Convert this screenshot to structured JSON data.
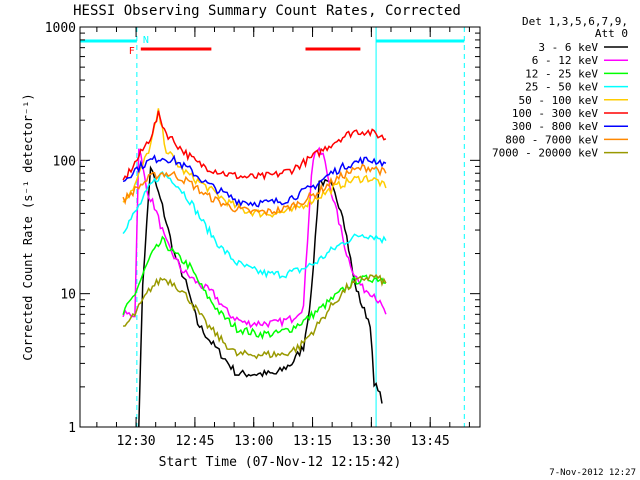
{
  "chart_data": {
    "type": "line",
    "title": "HESSI Observing Summary Count Rates, Corrected",
    "xlabel": "Start Time (07-Nov-12 12:15:42)",
    "ylabel": "Corrected Count Rate (s⁻¹ detector⁻¹)",
    "y_scale": "log",
    "ylim": [
      1,
      1000
    ],
    "xlim_minutes": [
      0,
      102
    ],
    "x_ticks": [
      {
        "label": "12:30",
        "t": 14.3
      },
      {
        "label": "12:45",
        "t": 29.3
      },
      {
        "label": "13:00",
        "t": 44.3
      },
      {
        "label": "13:15",
        "t": 59.3
      },
      {
        "label": "13:30",
        "t": 74.3
      },
      {
        "label": "13:45",
        "t": 89.3
      }
    ],
    "y_ticks": [
      {
        "label": "1",
        "v": 1
      },
      {
        "label": "10",
        "v": 10
      },
      {
        "label": "100",
        "v": 100
      },
      {
        "label": "1000",
        "v": 1000
      }
    ],
    "legend_header": [
      "Det 1,3,5,6,7,9,",
      "Att 0"
    ],
    "series": [
      {
        "name": "3 - 6 keV",
        "color": "#000000",
        "points": [
          [
            15,
            1
          ],
          [
            16,
            12
          ],
          [
            18,
            90
          ],
          [
            21,
            45
          ],
          [
            24,
            20
          ],
          [
            27,
            12
          ],
          [
            30,
            6
          ],
          [
            33,
            4.5
          ],
          [
            36,
            3.5
          ],
          [
            40,
            2.5
          ],
          [
            45,
            2.5
          ],
          [
            50,
            2.5
          ],
          [
            54,
            3
          ],
          [
            57,
            4
          ],
          [
            59,
            10
          ],
          [
            61,
            70
          ],
          [
            64,
            65
          ],
          [
            67,
            40
          ],
          [
            70,
            12
          ],
          [
            72,
            8
          ],
          [
            74,
            6
          ],
          [
            75,
            2
          ],
          [
            76,
            2
          ],
          [
            77,
            1.5
          ]
        ]
      },
      {
        "name": "6 - 12 keV",
        "color": "#ff00ff",
        "points": [
          [
            11,
            7
          ],
          [
            14,
            7
          ],
          [
            15,
            130
          ],
          [
            17,
            60
          ],
          [
            19,
            45
          ],
          [
            22,
            24
          ],
          [
            26,
            15
          ],
          [
            30,
            12
          ],
          [
            34,
            10
          ],
          [
            38,
            7
          ],
          [
            42,
            6
          ],
          [
            46,
            6
          ],
          [
            50,
            6
          ],
          [
            54,
            6.5
          ],
          [
            57,
            8
          ],
          [
            59,
            80
          ],
          [
            60,
            120
          ],
          [
            62,
            110
          ],
          [
            64,
            60
          ],
          [
            66,
            35
          ],
          [
            68,
            20
          ],
          [
            70,
            14
          ],
          [
            72,
            11
          ],
          [
            75,
            10
          ],
          [
            78,
            7
          ]
        ]
      },
      {
        "name": "12 - 25 keV",
        "color": "#00ff00",
        "points": [
          [
            11,
            7
          ],
          [
            14,
            10
          ],
          [
            18,
            19
          ],
          [
            21,
            25
          ],
          [
            24,
            20
          ],
          [
            28,
            16
          ],
          [
            32,
            10
          ],
          [
            36,
            7
          ],
          [
            40,
            5.5
          ],
          [
            45,
            5
          ],
          [
            50,
            5
          ],
          [
            54,
            5.5
          ],
          [
            58,
            6.5
          ],
          [
            62,
            8
          ],
          [
            66,
            10
          ],
          [
            70,
            12.5
          ],
          [
            74,
            13
          ],
          [
            77,
            13
          ],
          [
            78,
            12
          ]
        ]
      },
      {
        "name": "25 - 50 keV",
        "color": "#00ffff",
        "points": [
          [
            11,
            30
          ],
          [
            14,
            40
          ],
          [
            18,
            65
          ],
          [
            21,
            80
          ],
          [
            24,
            70
          ],
          [
            28,
            50
          ],
          [
            32,
            32
          ],
          [
            36,
            22
          ],
          [
            40,
            17
          ],
          [
            44,
            15
          ],
          [
            48,
            14
          ],
          [
            52,
            14
          ],
          [
            56,
            15
          ],
          [
            60,
            17
          ],
          [
            64,
            21
          ],
          [
            68,
            25
          ],
          [
            72,
            28
          ],
          [
            75,
            27
          ],
          [
            78,
            25
          ]
        ]
      },
      {
        "name": "50 - 100 keV",
        "color": "#ffcc00",
        "points": [
          [
            11,
            50
          ],
          [
            14,
            65
          ],
          [
            18,
            130
          ],
          [
            20,
            230
          ],
          [
            22,
            120
          ],
          [
            26,
            85
          ],
          [
            30,
            70
          ],
          [
            34,
            58
          ],
          [
            38,
            48
          ],
          [
            42,
            42
          ],
          [
            46,
            40
          ],
          [
            50,
            40
          ],
          [
            54,
            42
          ],
          [
            58,
            48
          ],
          [
            62,
            56
          ],
          [
            66,
            65
          ],
          [
            70,
            72
          ],
          [
            73,
            74
          ],
          [
            76,
            70
          ],
          [
            78,
            62
          ]
        ]
      },
      {
        "name": "100 - 300 keV",
        "color": "#ff0000",
        "points": [
          [
            11,
            70
          ],
          [
            14,
            95
          ],
          [
            18,
            150
          ],
          [
            20,
            220
          ],
          [
            22,
            160
          ],
          [
            26,
            120
          ],
          [
            30,
            95
          ],
          [
            34,
            85
          ],
          [
            38,
            78
          ],
          [
            42,
            75
          ],
          [
            46,
            75
          ],
          [
            50,
            78
          ],
          [
            54,
            85
          ],
          [
            58,
            100
          ],
          [
            62,
            120
          ],
          [
            66,
            145
          ],
          [
            70,
            165
          ],
          [
            73,
            165
          ],
          [
            76,
            155
          ],
          [
            78,
            145
          ]
        ]
      },
      {
        "name": "300 - 800 keV",
        "color": "#0000ff",
        "points": [
          [
            11,
            70
          ],
          [
            14,
            85
          ],
          [
            18,
            100
          ],
          [
            21,
            105
          ],
          [
            24,
            100
          ],
          [
            28,
            85
          ],
          [
            32,
            68
          ],
          [
            36,
            58
          ],
          [
            40,
            50
          ],
          [
            44,
            48
          ],
          [
            48,
            48
          ],
          [
            52,
            50
          ],
          [
            56,
            56
          ],
          [
            60,
            65
          ],
          [
            64,
            80
          ],
          [
            68,
            92
          ],
          [
            72,
            100
          ],
          [
            75,
            100
          ],
          [
            78,
            95
          ]
        ]
      },
      {
        "name": "800 - 7000 keV",
        "color": "#ff8800",
        "points": [
          [
            11,
            50
          ],
          [
            14,
            60
          ],
          [
            18,
            75
          ],
          [
            21,
            80
          ],
          [
            24,
            78
          ],
          [
            28,
            68
          ],
          [
            32,
            55
          ],
          [
            36,
            48
          ],
          [
            40,
            43
          ],
          [
            44,
            41
          ],
          [
            48,
            41
          ],
          [
            52,
            43
          ],
          [
            56,
            48
          ],
          [
            60,
            56
          ],
          [
            64,
            68
          ],
          [
            68,
            80
          ],
          [
            72,
            88
          ],
          [
            75,
            88
          ],
          [
            78,
            80
          ]
        ]
      },
      {
        "name": "7000 - 20000 keV",
        "color": "#999900",
        "points": [
          [
            11,
            5.5
          ],
          [
            14,
            7
          ],
          [
            18,
            11
          ],
          [
            21,
            13
          ],
          [
            24,
            12
          ],
          [
            28,
            9
          ],
          [
            32,
            6
          ],
          [
            36,
            4.5
          ],
          [
            40,
            3.5
          ],
          [
            44,
            3.5
          ],
          [
            48,
            3.5
          ],
          [
            52,
            3.5
          ],
          [
            56,
            4
          ],
          [
            60,
            5.5
          ],
          [
            64,
            8
          ],
          [
            68,
            11
          ],
          [
            72,
            13
          ],
          [
            75,
            13.5
          ],
          [
            78,
            12
          ]
        ]
      }
    ],
    "annotations": {
      "night_bars": [
        {
          "label": "N",
          "t_start": 0,
          "t_end": 14.5,
          "color": "#00ffff"
        },
        {
          "label": "",
          "t_start": 75.5,
          "t_end": 98,
          "color": "#00ffff"
        }
      ],
      "flag_bars": [
        {
          "label": "F",
          "t_start": 15.5,
          "t_end": 33.5,
          "color": "#ff0000"
        },
        {
          "label": "",
          "t_start": 57.5,
          "t_end": 71.5,
          "color": "#ff0000"
        }
      ],
      "vertical_lines": [
        {
          "t": 0,
          "style": "solid"
        },
        {
          "t": 14.5,
          "style": "dashed"
        },
        {
          "t": 75.5,
          "style": "solid"
        },
        {
          "t": 98,
          "style": "dashed"
        }
      ]
    }
  },
  "footer": {
    "timestamp": "7-Nov-2012 12:27"
  }
}
